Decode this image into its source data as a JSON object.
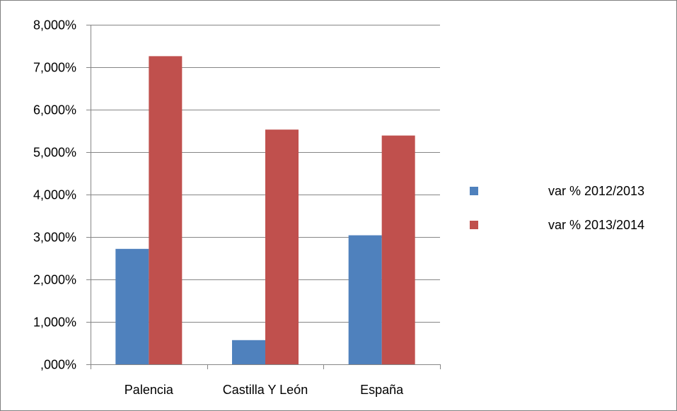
{
  "chart_data": {
    "type": "bar",
    "title": "",
    "xlabel": "",
    "ylabel": "",
    "categories": [
      "Palencia",
      "Castilla Y León",
      "España"
    ],
    "series": [
      {
        "name": "var % 2012/2013",
        "color": "#4f81bd",
        "values": [
          2.72,
          0.57,
          3.04
        ]
      },
      {
        "name": "var % 2013/2014",
        "color": "#c0504d",
        "values": [
          7.26,
          5.53,
          5.39
        ]
      }
    ],
    "ylim": [
      0,
      8
    ],
    "y_ticks": [
      0,
      1,
      2,
      3,
      4,
      5,
      6,
      7,
      8
    ],
    "y_tick_labels": [
      ",000%",
      "1,000%",
      "2,000%",
      "3,000%",
      "4,000%",
      "5,000%",
      "6,000%",
      "7,000%",
      "8,000%"
    ],
    "grid": true,
    "legend_position": "right"
  }
}
